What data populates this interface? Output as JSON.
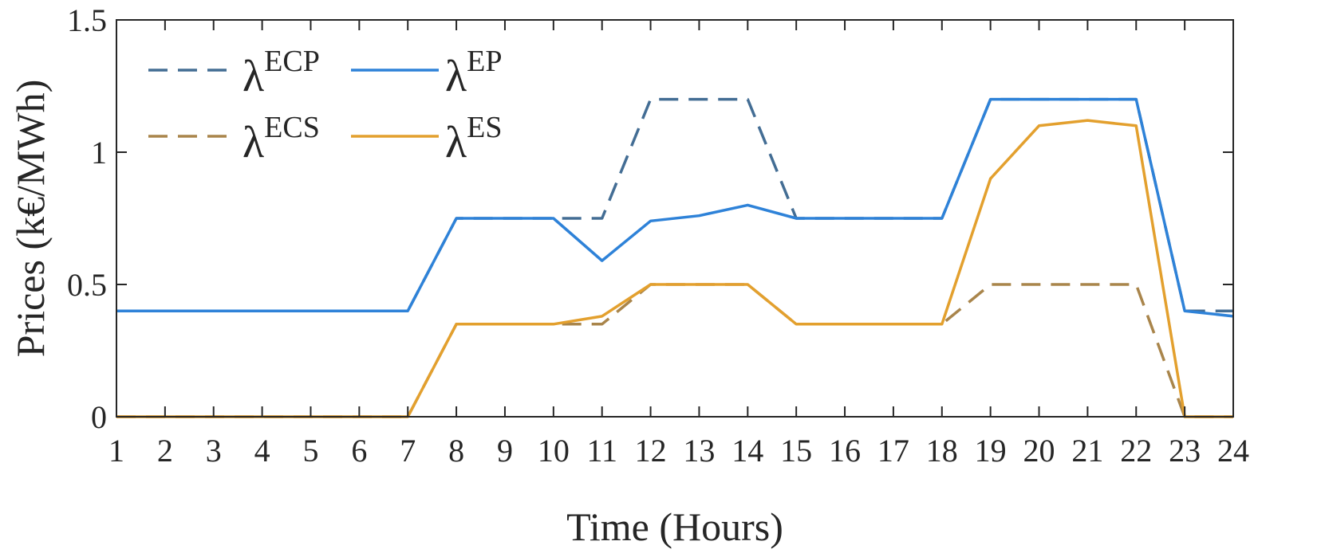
{
  "chart_data": {
    "type": "line",
    "title": "",
    "xlabel": "Time (Hours)",
    "ylabel": "Prices (k€/MWh)",
    "xlim": [
      1,
      24
    ],
    "ylim": [
      0,
      1.5
    ],
    "x": [
      1,
      2,
      3,
      4,
      5,
      6,
      7,
      8,
      9,
      10,
      11,
      12,
      13,
      14,
      15,
      16,
      17,
      18,
      19,
      20,
      21,
      22,
      23,
      24
    ],
    "xticks": [
      "1",
      "2",
      "3",
      "4",
      "5",
      "6",
      "7",
      "8",
      "9",
      "10",
      "11",
      "12",
      "13",
      "14",
      "15",
      "16",
      "17",
      "18",
      "19",
      "20",
      "21",
      "22",
      "23",
      "24"
    ],
    "yticks": [
      {
        "value": 0,
        "label": "0"
      },
      {
        "value": 0.5,
        "label": "0.5"
      },
      {
        "value": 1,
        "label": "1"
      },
      {
        "value": 1.5,
        "label": "1.5"
      }
    ],
    "grid": false,
    "legend_position": "top-left",
    "series": [
      {
        "name": "λ^ECP",
        "symbol": "λ",
        "superscript": "ECP",
        "color": "#436d94",
        "style": "dashed",
        "values": [
          0.4,
          0.4,
          0.4,
          0.4,
          0.4,
          0.4,
          0.4,
          0.75,
          0.75,
          0.75,
          0.75,
          1.2,
          1.2,
          1.2,
          0.75,
          0.75,
          0.75,
          0.75,
          1.2,
          1.2,
          1.2,
          1.2,
          0.4,
          0.4
        ]
      },
      {
        "name": "λ^ECS",
        "symbol": "λ",
        "superscript": "ECS",
        "color": "#a9854b",
        "style": "dashed",
        "values": [
          0,
          0,
          0,
          0,
          0,
          0,
          0,
          0.35,
          0.35,
          0.35,
          0.35,
          0.5,
          0.5,
          0.5,
          0.35,
          0.35,
          0.35,
          0.35,
          0.5,
          0.5,
          0.5,
          0.5,
          0,
          0
        ]
      },
      {
        "name": "λ^EP",
        "symbol": "λ",
        "superscript": "EP",
        "color": "#2e82d8",
        "style": "solid",
        "values": [
          0.4,
          0.4,
          0.4,
          0.4,
          0.4,
          0.4,
          0.4,
          0.75,
          0.75,
          0.75,
          0.59,
          0.74,
          0.76,
          0.8,
          0.75,
          0.75,
          0.75,
          0.75,
          1.2,
          1.2,
          1.2,
          1.2,
          0.4,
          0.38
        ]
      },
      {
        "name": "λ^ES",
        "symbol": "λ",
        "superscript": "ES",
        "color": "#e3a02e",
        "style": "solid",
        "values": [
          0,
          0,
          0,
          0,
          0,
          0,
          0,
          0.35,
          0.35,
          0.35,
          0.38,
          0.5,
          0.5,
          0.5,
          0.35,
          0.35,
          0.35,
          0.35,
          0.9,
          1.1,
          1.12,
          1.1,
          0,
          0
        ]
      }
    ]
  }
}
